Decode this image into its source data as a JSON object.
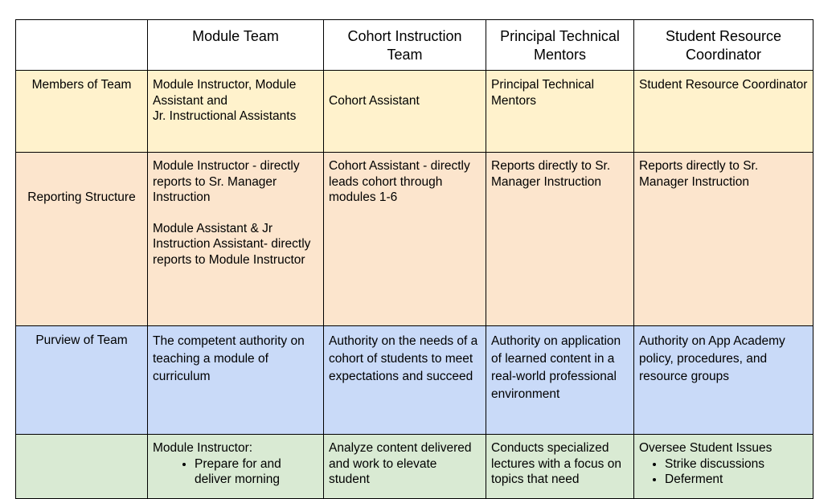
{
  "headers": [
    "",
    "Module Team",
    "Cohort Instruction Team",
    "Principal Technical Mentors",
    "Student Resource Coordinator"
  ],
  "members": {
    "label": "Members of Team",
    "module": "Module Instructor, Module Assistant and\nJr. Instructional Assistants",
    "cohort": "Cohort Assistant",
    "mentors": "Principal Technical Mentors",
    "coordinator": "Student Resource Coordinator"
  },
  "reporting": {
    "label": "Reporting Structure",
    "module_p1": "Module Instructor - directly reports to Sr. Manager Instruction",
    "module_p2": "Module Assistant & Jr Instruction Assistant- directly reports to Module Instructor",
    "cohort": "Cohort Assistant - directly leads cohort through modules 1-6",
    "mentors": "Reports directly to Sr. Manager Instruction",
    "coordinator": "Reports directly to Sr. Manager Instruction"
  },
  "purview": {
    "label": "Purview of Team",
    "module": "The competent authority on teaching a module of curriculum",
    "cohort": "Authority on the needs of a cohort of students to meet expectations and succeed",
    "mentors": "Authority on application of learned content in a real-world professional environment",
    "coordinator": "Authority on App Academy policy, procedures, and resource groups"
  },
  "responsibilities": {
    "module_heading": "Module Instructor:",
    "module_bullets": [
      "Prepare for and deliver morning"
    ],
    "cohort": "Analyze content delivered and work to elevate student",
    "mentors": "Conducts specialized lectures with a focus on topics that need",
    "coordinator_heading": "Oversee Student Issues",
    "coordinator_bullets": [
      "Strike discussions",
      "Deferment"
    ]
  }
}
